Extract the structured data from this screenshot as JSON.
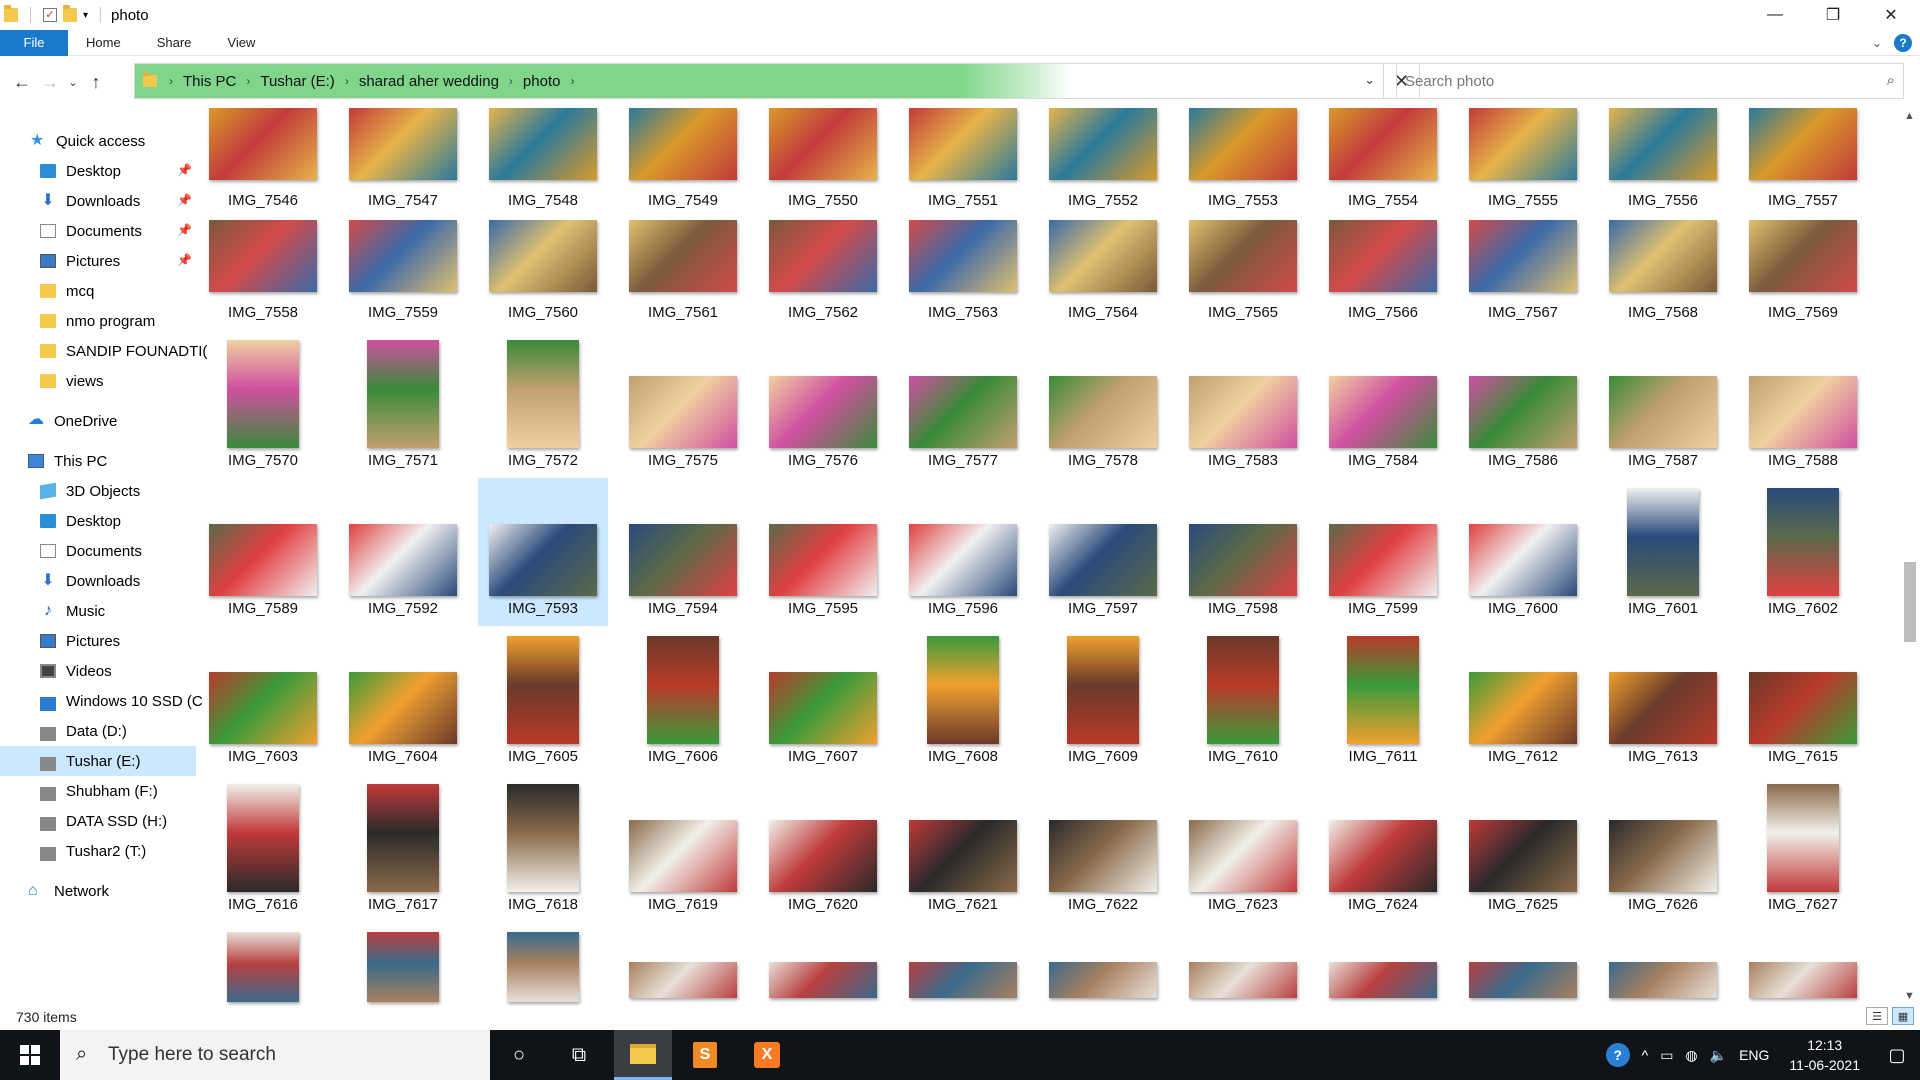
{
  "window": {
    "title": "photo"
  },
  "ribbon": {
    "tabs": [
      "File",
      "Home",
      "Share",
      "View"
    ]
  },
  "address": {
    "crumbs": [
      "This PC",
      "Tushar (E:)",
      "sharad aher wedding",
      "photo"
    ]
  },
  "search": {
    "placeholder": "Search photo"
  },
  "sidebar": {
    "items": [
      {
        "label": "Quick access",
        "icon": "star-icon",
        "pinned": false
      },
      {
        "label": "Desktop",
        "icon": "desktop-icon",
        "pinned": true
      },
      {
        "label": "Downloads",
        "icon": "download-icon",
        "pinned": true
      },
      {
        "label": "Documents",
        "icon": "documents-icon",
        "pinned": true
      },
      {
        "label": "Pictures",
        "icon": "pictures-icon",
        "pinned": true
      },
      {
        "label": "mcq",
        "icon": "folder-icon",
        "pinned": false
      },
      {
        "label": "nmo program",
        "icon": "folder-icon",
        "pinned": false
      },
      {
        "label": "SANDIP FOUNADTI(",
        "icon": "folder-icon",
        "pinned": false
      },
      {
        "label": "views",
        "icon": "folder-icon",
        "pinned": false
      },
      {
        "label": "OneDrive",
        "icon": "cloud-icon",
        "pinned": false
      },
      {
        "label": "This PC",
        "icon": "computer-icon",
        "pinned": false
      },
      {
        "label": "3D Objects",
        "icon": "3d-objects-icon",
        "pinned": false
      },
      {
        "label": "Desktop",
        "icon": "desktop-icon",
        "pinned": false
      },
      {
        "label": "Documents",
        "icon": "documents-icon",
        "pinned": false
      },
      {
        "label": "Downloads",
        "icon": "download-icon",
        "pinned": false
      },
      {
        "label": "Music",
        "icon": "music-icon",
        "pinned": false
      },
      {
        "label": "Pictures",
        "icon": "pictures-icon",
        "pinned": false
      },
      {
        "label": "Videos",
        "icon": "videos-icon",
        "pinned": false
      },
      {
        "label": "Windows 10 SSD (C",
        "icon": "windows-drive-icon",
        "pinned": false
      },
      {
        "label": "Data (D:)",
        "icon": "drive-icon",
        "pinned": false
      },
      {
        "label": "Tushar (E:)",
        "icon": "drive-icon",
        "pinned": false,
        "selected": true
      },
      {
        "label": "Shubham (F:)",
        "icon": "drive-icon",
        "pinned": false
      },
      {
        "label": "DATA SSD (H:)",
        "icon": "drive-icon",
        "pinned": false
      },
      {
        "label": "Tushar2 (T:)",
        "icon": "drive-icon",
        "pinned": false
      },
      {
        "label": "Network",
        "icon": "network-icon",
        "pinned": false
      }
    ]
  },
  "files": {
    "rows": [
      [
        "IMG_7546",
        "IMG_7547",
        "IMG_7548",
        "IMG_7549",
        "IMG_7550",
        "IMG_7551",
        "IMG_7552",
        "IMG_7553",
        "IMG_7554",
        "IMG_7555",
        "IMG_7556",
        "IMG_7557"
      ],
      [
        "IMG_7558",
        "IMG_7559",
        "IMG_7560",
        "IMG_7561",
        "IMG_7562",
        "IMG_7563",
        "IMG_7564",
        "IMG_7565",
        "IMG_7566",
        "IMG_7567",
        "IMG_7568",
        "IMG_7569"
      ],
      [
        "IMG_7570",
        "IMG_7571",
        "IMG_7572",
        "IMG_7575",
        "IMG_7576",
        "IMG_7577",
        "IMG_7578",
        "IMG_7583",
        "IMG_7584",
        "IMG_7586",
        "IMG_7587",
        "IMG_7588"
      ],
      [
        "IMG_7589",
        "IMG_7592",
        "IMG_7593",
        "IMG_7594",
        "IMG_7595",
        "IMG_7596",
        "IMG_7597",
        "IMG_7598",
        "IMG_7599",
        "IMG_7600",
        "IMG_7601",
        "IMG_7602"
      ],
      [
        "IMG_7603",
        "IMG_7604",
        "IMG_7605",
        "IMG_7606",
        "IMG_7607",
        "IMG_7608",
        "IMG_7609",
        "IMG_7610",
        "IMG_7611",
        "IMG_7612",
        "IMG_7613",
        "IMG_7615"
      ],
      [
        "IMG_7616",
        "IMG_7617",
        "IMG_7618",
        "IMG_7619",
        "IMG_7620",
        "IMG_7621",
        "IMG_7622",
        "IMG_7623",
        "IMG_7624",
        "IMG_7625",
        "IMG_7626",
        "IMG_7627"
      ],
      [
        "",
        "",
        "",
        "",
        "",
        "",
        "",
        "",
        "",
        "",
        "",
        ""
      ]
    ],
    "orientation": [
      [
        "L",
        "L",
        "L",
        "L",
        "L",
        "L",
        "L",
        "L",
        "L",
        "L",
        "L",
        "L"
      ],
      [
        "L",
        "L",
        "L",
        "L",
        "L",
        "L",
        "L",
        "L",
        "L",
        "L",
        "L",
        "L"
      ],
      [
        "P",
        "P",
        "P",
        "L",
        "L",
        "L",
        "L",
        "L",
        "L",
        "L",
        "L",
        "L"
      ],
      [
        "L",
        "L",
        "L",
        "L",
        "L",
        "L",
        "L",
        "L",
        "L",
        "L",
        "P",
        "P"
      ],
      [
        "L",
        "L",
        "P",
        "P",
        "L",
        "P",
        "P",
        "P",
        "P",
        "L",
        "L",
        "L"
      ],
      [
        "P",
        "P",
        "P",
        "L",
        "L",
        "L",
        "L",
        "L",
        "L",
        "L",
        "L",
        "P"
      ],
      [
        "P",
        "P",
        "P",
        "L",
        "L",
        "L",
        "L",
        "L",
        "L",
        "L",
        "L",
        "L"
      ]
    ],
    "palette": [
      [
        "#d99a2a",
        "#c23a3a",
        "#e6b44a",
        "#2a7a9a"
      ],
      [
        "#7a5a3a",
        "#d24a4a",
        "#3a6aa8",
        "#e0c070"
      ],
      [
        "#f0d0a0",
        "#d050a0",
        "#3a8a3a",
        "#c0a070"
      ],
      [
        "#5a6a4a",
        "#e04040",
        "#f0f0f0",
        "#2a4a7a"
      ],
      [
        "#b83a2a",
        "#3a9a3a",
        "#f0a030",
        "#6a3a2a"
      ],
      [
        "#f2f0ea",
        "#c03a3a",
        "#2a2a2a",
        "#8a6a4a"
      ],
      [
        "#e8e0d8",
        "#b84040",
        "#3a6a8a",
        "#a88060"
      ]
    ],
    "selected": "IMG_7593"
  },
  "status": {
    "item_count": "730 items"
  },
  "taskbar": {
    "search_placeholder": "Type here to search",
    "language": "ENG",
    "time": "12:13",
    "date": "11-06-2021"
  },
  "colors": {
    "file_tab": "#1979ca",
    "address_progress": "#7fd68a",
    "selection": "#cce8ff",
    "taskbar": "#101317"
  }
}
